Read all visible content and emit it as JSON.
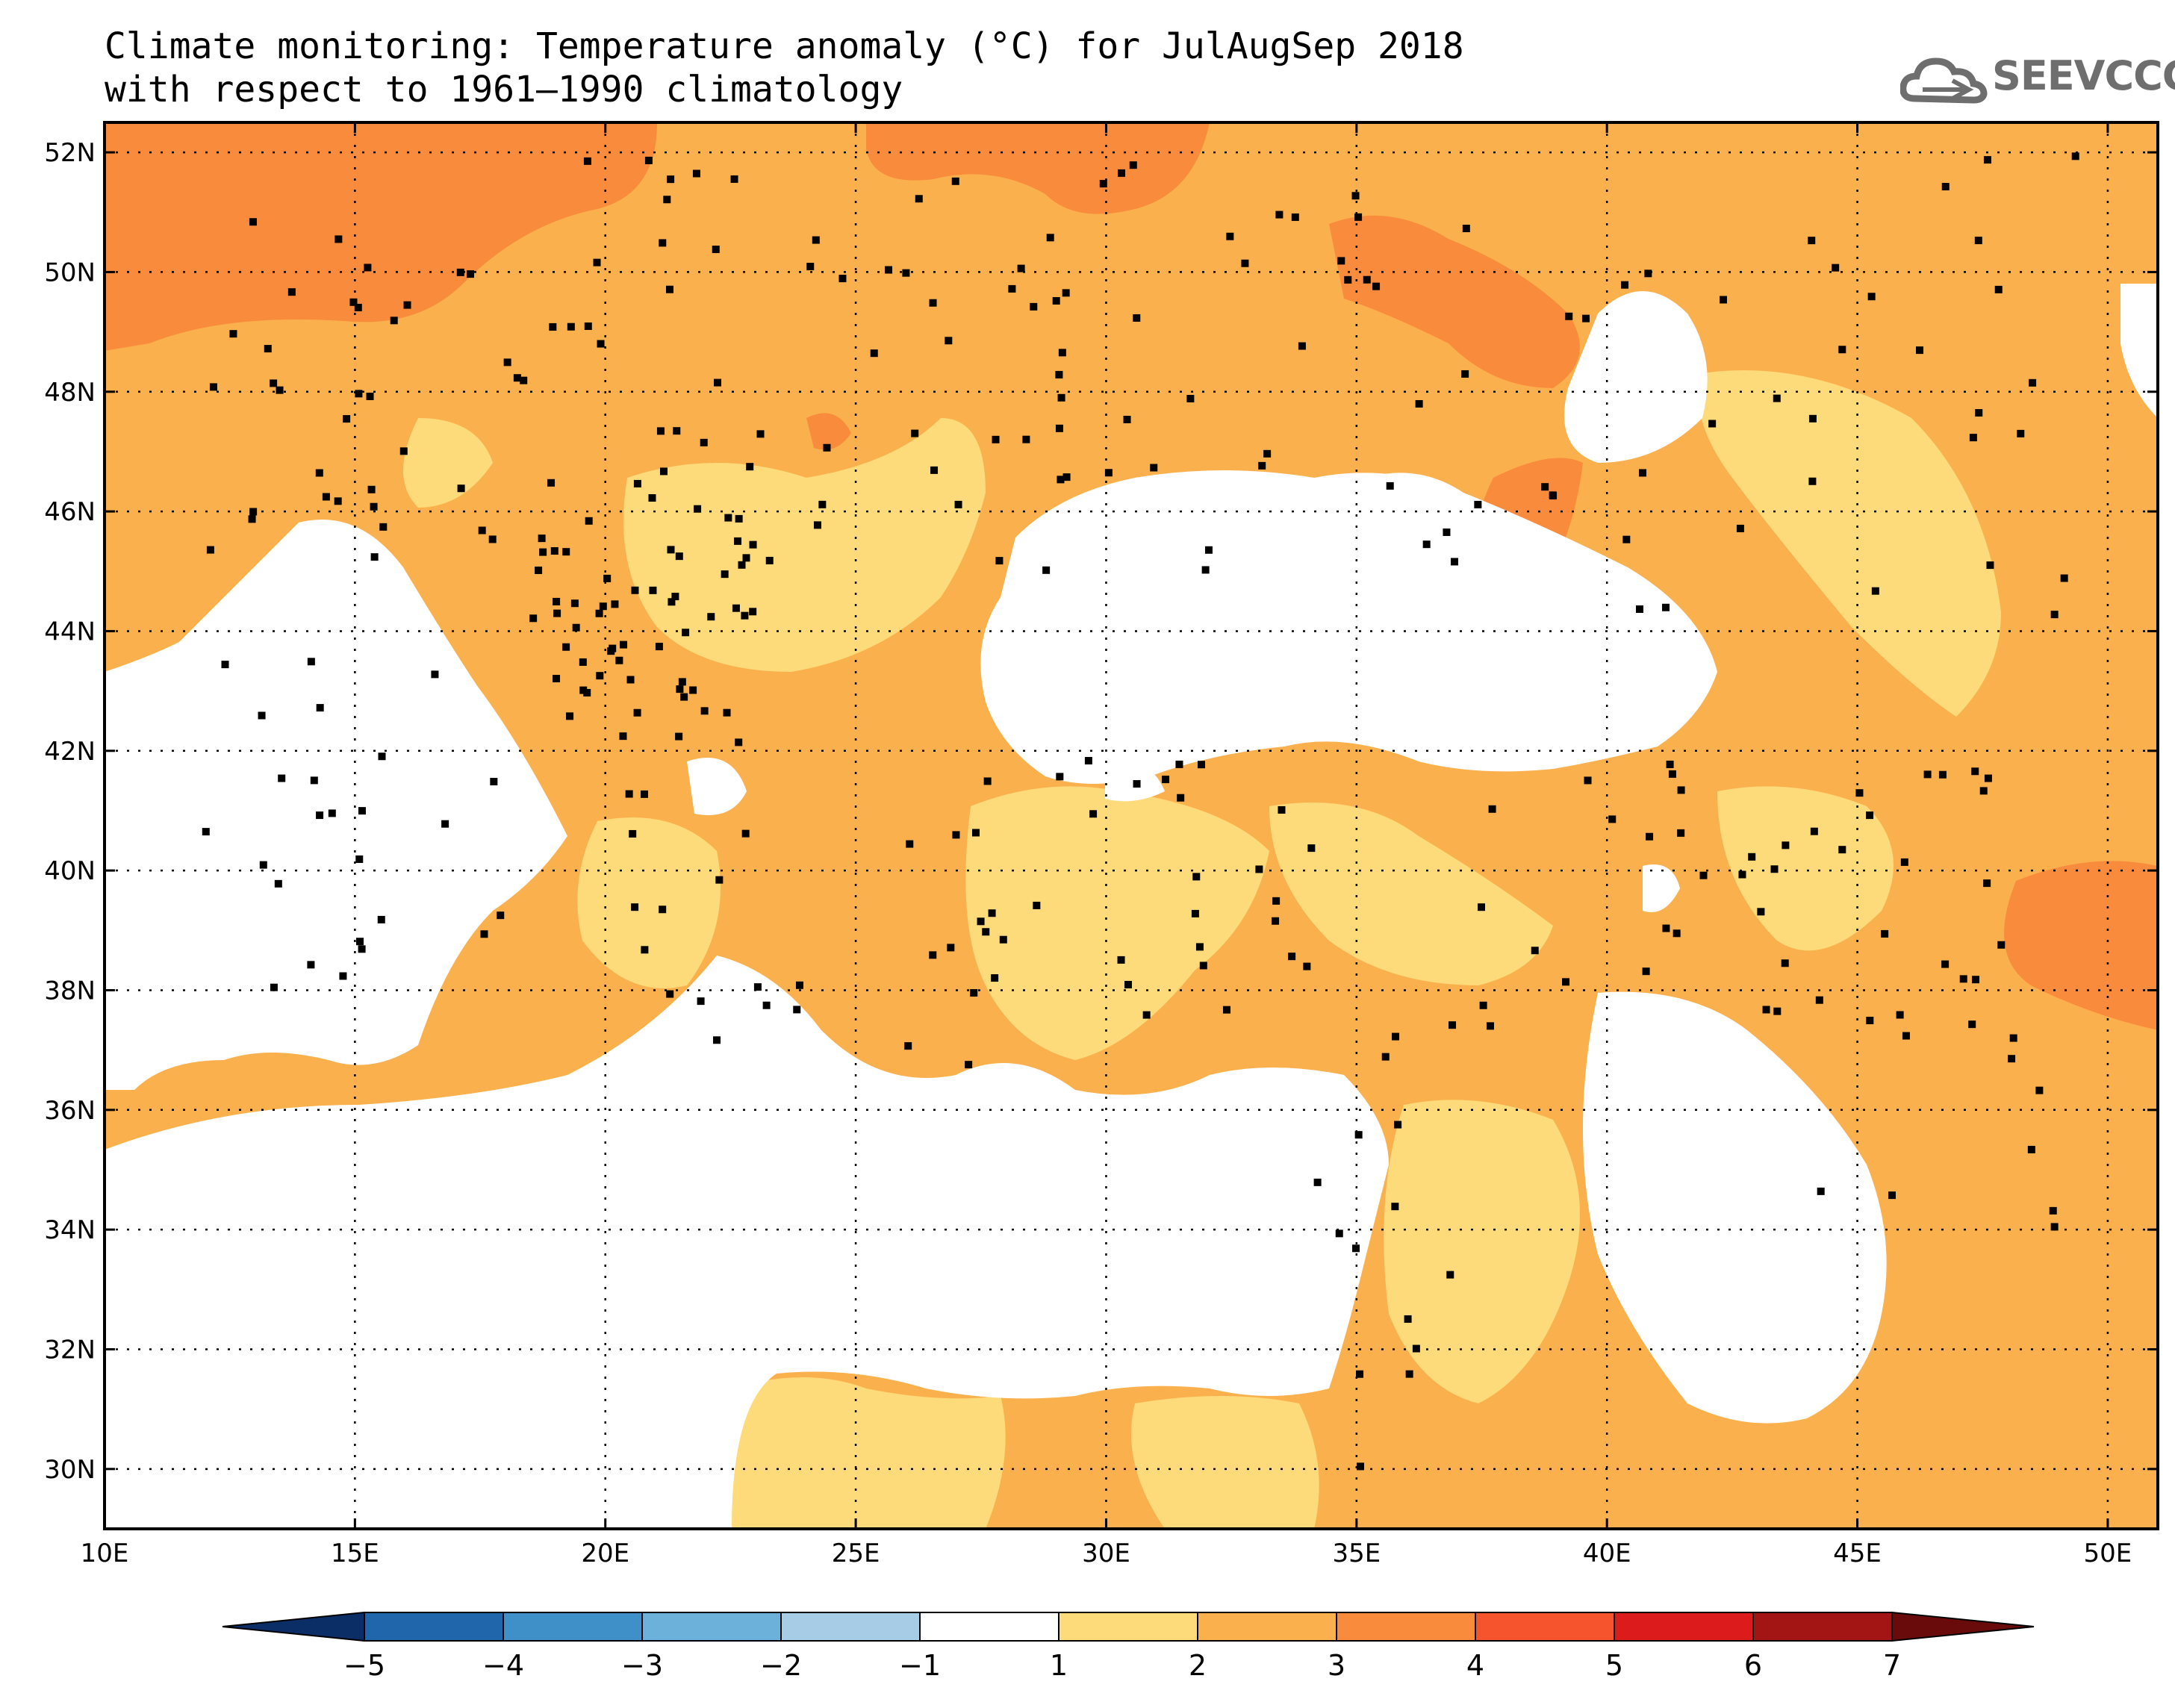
{
  "title": {
    "line1": "Climate monitoring: Temperature anomaly (°C) for JulAugSep 2018",
    "line2": "with respect to 1961–1990 climatology"
  },
  "logo": {
    "text": "SEEVCCC",
    "icon": "cloud-icon"
  },
  "map": {
    "lon_range": [
      10,
      51
    ],
    "lat_range": [
      29,
      52.5
    ],
    "lon_ticks": [
      "10E",
      "15E",
      "20E",
      "25E",
      "30E",
      "35E",
      "40E",
      "45E",
      "50E"
    ],
    "lat_ticks": [
      "30N",
      "32N",
      "34N",
      "36N",
      "38N",
      "40N",
      "42N",
      "44N",
      "46N",
      "48N",
      "50N",
      "52N"
    ],
    "gridlines": "dotted",
    "station_markers": "black squares"
  },
  "colorbar": {
    "labels": [
      "−5",
      "−4",
      "−3",
      "−2",
      "−1",
      "1",
      "2",
      "3",
      "4",
      "5",
      "6",
      "7"
    ],
    "colors": [
      "#0b2e67",
      "#1f67aa",
      "#3f8fc8",
      "#6cb1da",
      "#a6cde5",
      "#ffffff",
      "#fddb7a",
      "#fbb04e",
      "#f98b3c",
      "#f6542c",
      "#dc1c1c",
      "#a31515",
      "#6a0b0b"
    ]
  },
  "anomaly_colors": {
    "1-2": "#fddb7a",
    "2-3": "#fbb04e",
    "3-4": "#f98b3c"
  }
}
